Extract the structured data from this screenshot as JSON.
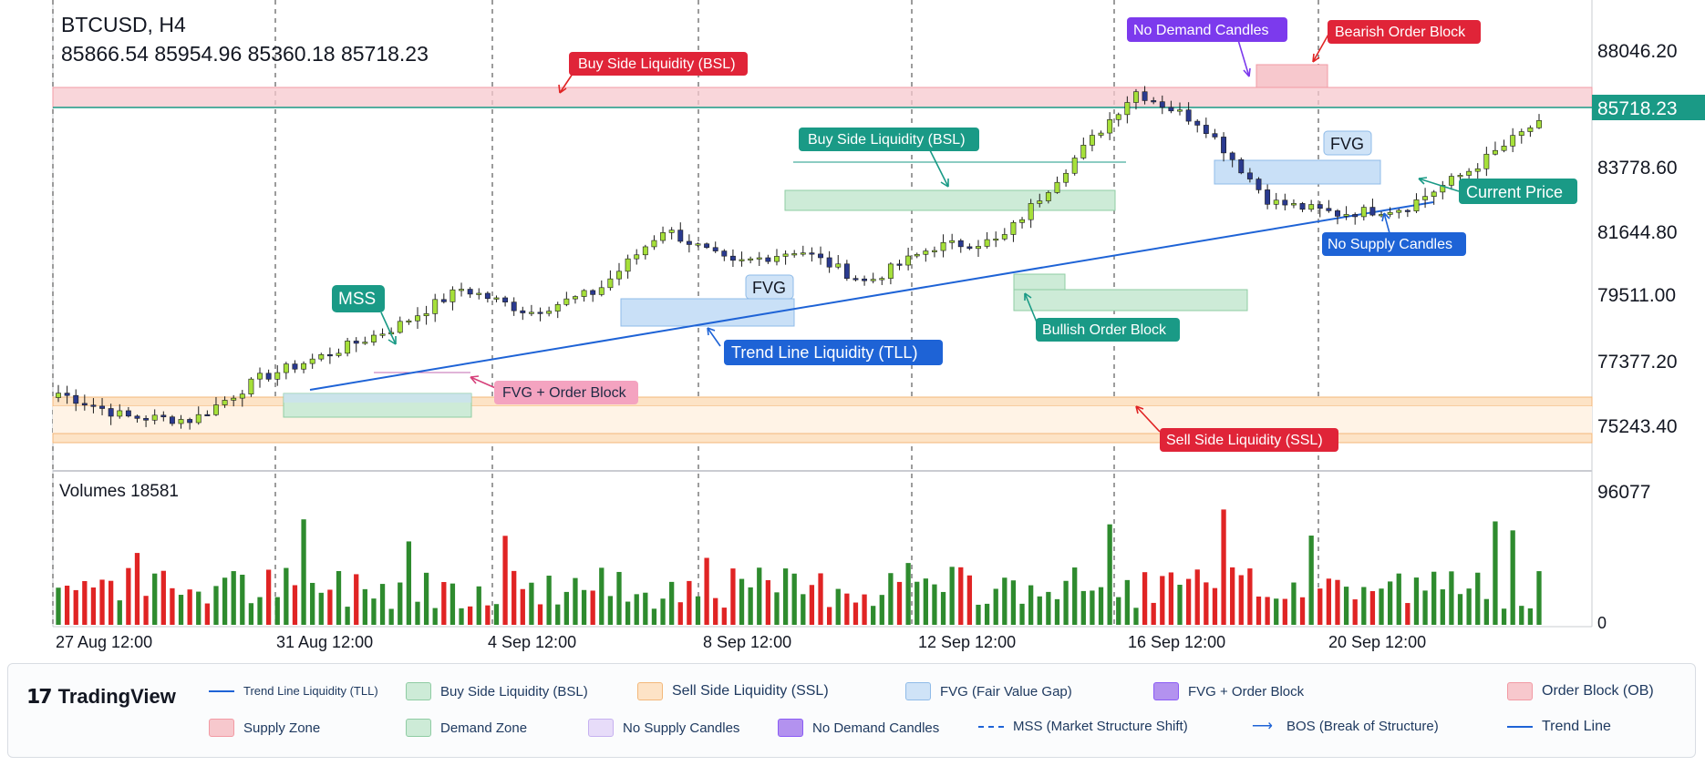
{
  "symbol": {
    "title": "BTCUSD, H4",
    "ohlc": "85866.54 85954.96 85360.18 85718.23"
  },
  "volume_label": "Volumes 18581",
  "colors": {
    "up": "#2e8b2e",
    "down": "#e02424",
    "accent_teal": "#1a9a86",
    "blue": "#1e63d6"
  },
  "price_axis": {
    "ticks": [
      "88046.20",
      "83778.60",
      "81644.80",
      "79511.00",
      "77377.20",
      "75243.40"
    ],
    "current": "85718.23"
  },
  "volume_axis": {
    "top": "96077",
    "zero": "0"
  },
  "time_axis": [
    "27 Aug 12:00",
    "31 Aug 12:00",
    "4 Sep 12:00",
    "8 Sep 12:00",
    "12 Sep 12:00",
    "16 Sep 12:00",
    "20 Sep 12:00"
  ],
  "annotations": {
    "bsl_top": "Buy Side Liquidity (BSL)",
    "bsl_mid": "Buy Side Liquidity (BSL)",
    "mss": "MSS",
    "fvg_ob": "FVG + Order Block",
    "fvg_left": "FVG",
    "tll": "Trend Line Liquidity (TLL)",
    "bullish_ob": "Bullish Order Block",
    "ssl": "Sell Side Liquidity (SSL)",
    "no_demand": "No Demand Candles",
    "bearish_ob": "Bearish Order Block",
    "fvg_right": "FVG",
    "current_price": "Current Price",
    "no_supply": "No Supply Candles"
  },
  "legend": {
    "brand": "TradingView",
    "tll": "Trend Line Liquidity (TLL)",
    "bsl": "Buy Side Liquidity (BSL)",
    "ssl": "Sell Side Liquidity (SSL)",
    "fvg": "FVG (Fair Value Gap)",
    "fvg_ob": "FVG + Order Block",
    "ob": "Order Block (OB)",
    "supply": "Supply Zone",
    "demand": "Demand Zone",
    "no_supply": "No Supply Candles",
    "no_demand": "No Demand Candles",
    "mss": "MSS (Market Structure Shift)",
    "bos": "BOS (Break of Structure)",
    "trend": "Trend Line"
  },
  "chart_data": {
    "type": "candlestick",
    "title": "BTCUSD, H4",
    "y_range": [
      74600,
      88900
    ],
    "volume_range": [
      0,
      96077
    ],
    "last_close": 85718.23,
    "anchors": [
      {
        "x": "27 Aug 12:00",
        "price": 76600
      },
      {
        "x": "29 Aug",
        "price": 75800
      },
      {
        "x": "31 Aug 12:00",
        "price": 75700
      },
      {
        "x": "1 Sep",
        "price": 77100
      },
      {
        "x": "3 Sep",
        "price": 77900
      },
      {
        "x": "5 Sep",
        "price": 78800
      },
      {
        "x": "6 Sep",
        "price": 80100
      },
      {
        "x": "7 Sep",
        "price": 79300
      },
      {
        "x": "8 Sep 12:00",
        "price": 80000
      },
      {
        "x": "9 Sep",
        "price": 82100
      },
      {
        "x": "10 Sep",
        "price": 80900
      },
      {
        "x": "12 Sep 12:00",
        "price": 81400
      },
      {
        "x": "13 Sep",
        "price": 80300
      },
      {
        "x": "15 Sep",
        "price": 81500
      },
      {
        "x": "16 Sep 12:00",
        "price": 81700
      },
      {
        "x": "17 Sep",
        "price": 84200
      },
      {
        "x": "17 Sep 20:00",
        "price": 86700
      },
      {
        "x": "18 Sep",
        "price": 85600
      },
      {
        "x": "19 Sep",
        "price": 83000
      },
      {
        "x": "20 Sep",
        "price": 82600
      },
      {
        "x": "20 Sep 12:00",
        "price": 82800
      },
      {
        "x": "21 Sep",
        "price": 84100
      },
      {
        "x": "23 Sep",
        "price": 85700
      }
    ]
  }
}
